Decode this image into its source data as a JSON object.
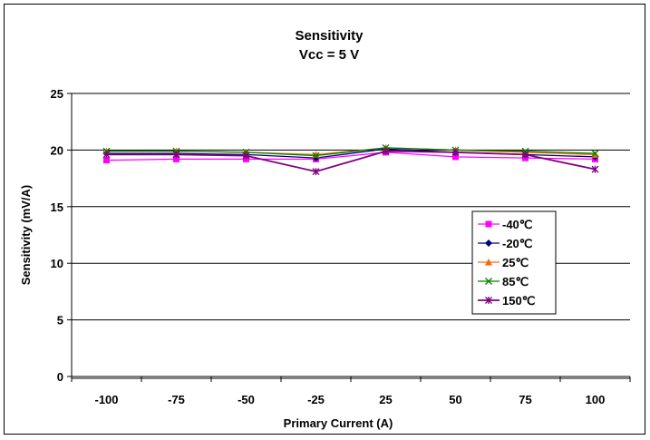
{
  "chart_data": {
    "type": "line",
    "title": [
      "Sensitivity",
      "Vcc = 5 V"
    ],
    "xlabel": "Primary Current (A)",
    "ylabel": "Sensitivity (mV/A)",
    "categories": [
      "-100",
      "-75",
      "-50",
      "-25",
      "25",
      "50",
      "75",
      "100"
    ],
    "ylim": [
      0,
      25
    ],
    "yticks": [
      "0",
      "5",
      "10",
      "15",
      "20",
      "25"
    ],
    "grid": "horizontal",
    "legend_position": "right",
    "series": [
      {
        "name": "-40℃",
        "color": "#ff00ff",
        "marker": "square",
        "values": [
          19.1,
          19.2,
          19.2,
          19.2,
          19.8,
          19.4,
          19.3,
          19.2
        ]
      },
      {
        "name": "-20℃",
        "color": "#000080",
        "marker": "diamond",
        "values": [
          19.7,
          19.7,
          19.6,
          19.3,
          20.1,
          19.8,
          19.6,
          19.4
        ]
      },
      {
        "name": "25℃",
        "color": "#ff6600",
        "marker": "triangle",
        "values": [
          19.9,
          19.9,
          19.8,
          19.6,
          20.2,
          20.0,
          19.8,
          19.6
        ]
      },
      {
        "name": "85℃",
        "color": "#008000",
        "marker": "x",
        "values": [
          19.9,
          19.9,
          19.8,
          19.5,
          20.2,
          20.0,
          19.9,
          19.7
        ]
      },
      {
        "name": "150℃",
        "color": "#800080",
        "marker": "star",
        "values": [
          19.6,
          19.6,
          19.5,
          18.1,
          19.9,
          19.8,
          19.6,
          18.3
        ]
      }
    ]
  }
}
